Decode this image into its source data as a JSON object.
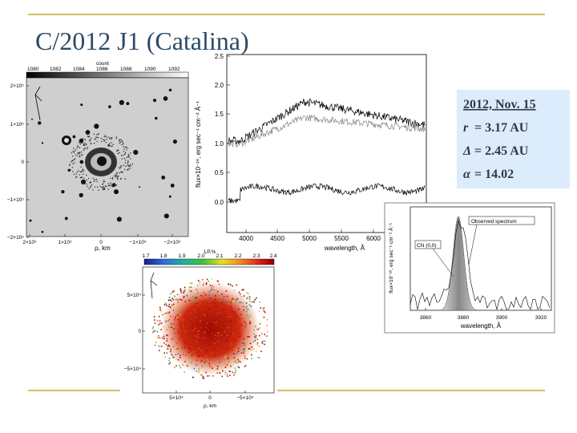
{
  "title": "C/2012 J1 (Catalina)",
  "info_box": {
    "date": "2012, Nov. 15",
    "params": [
      {
        "symbol": "r",
        "text": "= 3.17 AU"
      },
      {
        "symbol": "Δ",
        "text": "= 2.45 AU"
      },
      {
        "symbol": "α",
        "text": "= 14.02"
      }
    ]
  },
  "image_panel": {
    "colorbar_label": "count",
    "colorbar_ticks": [
      "1080",
      "1082",
      "1084",
      "1086",
      "1088",
      "1090",
      "1092"
    ],
    "yticks": [
      "2×10⁵",
      "1×10⁵",
      "0",
      "−1×10⁵",
      "−2×10⁵"
    ],
    "xticks": [
      "2×10⁵",
      "1×10⁵",
      "0",
      "−1×10⁵",
      "−2×10⁵"
    ],
    "xlabel": "ρ, km"
  },
  "spectrum_panel": {
    "yticks": [
      "2.5",
      "2.0",
      "1.5",
      "1.0",
      "0.5",
      "0.0"
    ],
    "xticks": [
      "4000",
      "4500",
      "5000",
      "5500",
      "6000"
    ],
    "xlabel": "wavelength, Å",
    "ylabel": "flux×10⁻¹⁶, erg sec⁻¹ cm⁻² Å⁻¹"
  },
  "cn_panel": {
    "annotations": [
      "CN (0,0)",
      "Observed spectrum"
    ],
    "xticks": [
      "3860",
      "3880",
      "3900",
      "3920"
    ],
    "xlabel": "wavelength, Å",
    "ylabel": "flux×10⁻¹⁶, erg sec⁻¹ cm⁻² Å⁻¹"
  },
  "polarization_panel": {
    "colorbar_label": "LP,%",
    "colorbar_ticks": [
      "1.7",
      "1.8",
      "1.9",
      "2.0",
      "2.1",
      "2.2",
      "2.3",
      "2.4"
    ],
    "yticks": [
      "5×10⁴",
      "0",
      "−5×10⁴"
    ],
    "xticks": [
      "5×10⁴",
      "0",
      "−5×10⁴"
    ],
    "xlabel": "ρ, km"
  }
}
